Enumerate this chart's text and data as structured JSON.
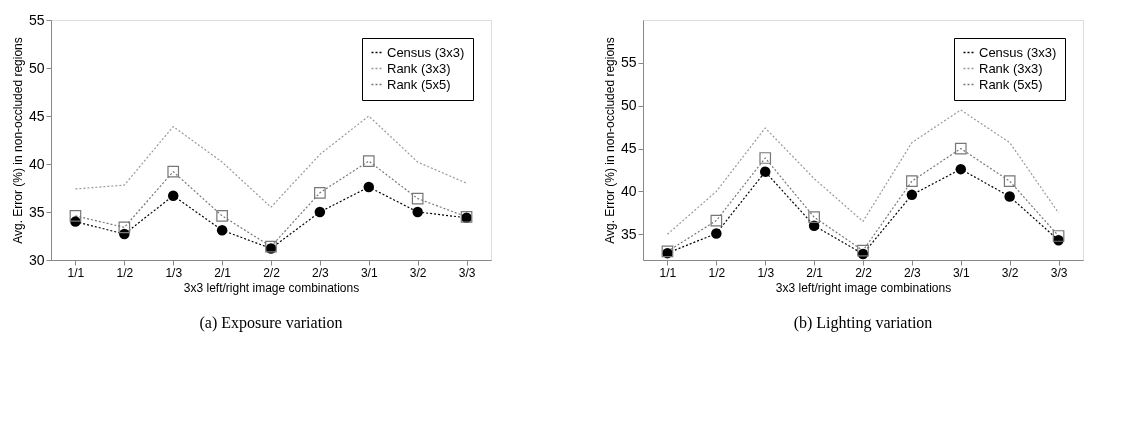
{
  "chart_data": [
    {
      "type": "line",
      "title": "(a) Exposure variation",
      "xlabel": "3x3 left/right image combinations",
      "ylabel": "Avg. Error (%) in non-occluded regions",
      "categories": [
        "1/1",
        "1/2",
        "1/3",
        "2/1",
        "2/2",
        "2/3",
        "3/1",
        "3/2",
        "3/3"
      ],
      "ylim": [
        30,
        55
      ],
      "yticks": [
        30,
        35,
        40,
        45,
        50,
        55
      ],
      "legend": "top right",
      "grid": false,
      "line_style": "dotted",
      "series": [
        {
          "name": "Census (3x3)",
          "color": "#000000",
          "marker": "circle",
          "values": [
            34.0,
            32.7,
            36.7,
            33.1,
            31.2,
            35.0,
            37.6,
            35.0,
            34.4
          ]
        },
        {
          "name": "Rank (3x3)",
          "color": "#999999",
          "marker": "none",
          "values": [
            37.4,
            37.8,
            43.9,
            40.2,
            35.5,
            41.0,
            45.0,
            40.2,
            38.0
          ]
        },
        {
          "name": "Rank (5x5)",
          "color": "#777777",
          "marker": "square",
          "values": [
            34.6,
            33.4,
            39.2,
            34.6,
            31.4,
            37.0,
            40.3,
            36.4,
            34.5
          ]
        }
      ]
    },
    {
      "type": "line",
      "title": "(b) Lighting variation",
      "xlabel": "3x3 left/right image combinations",
      "ylabel": "Avg. Error (%) in non-occluded regions",
      "categories": [
        "1/1",
        "1/2",
        "1/3",
        "2/1",
        "2/2",
        "2/3",
        "3/1",
        "3/2",
        "3/3"
      ],
      "ylim": [
        32,
        60
      ],
      "yticks": [
        35,
        40,
        45,
        50,
        55
      ],
      "legend": "top right",
      "grid": false,
      "line_style": "dotted",
      "series": [
        {
          "name": "Census (3x3)",
          "color": "#000000",
          "marker": "circle",
          "values": [
            32.8,
            35.1,
            42.3,
            36.0,
            32.7,
            39.6,
            42.6,
            39.4,
            34.3
          ]
        },
        {
          "name": "Rank (3x3)",
          "color": "#999999",
          "marker": "none",
          "values": [
            35.0,
            40.0,
            47.4,
            41.5,
            36.5,
            45.7,
            49.5,
            45.7,
            37.5
          ]
        },
        {
          "name": "Rank (5x5)",
          "color": "#777777",
          "marker": "square",
          "values": [
            33.0,
            36.6,
            43.9,
            37.0,
            33.1,
            41.2,
            45.0,
            41.2,
            34.8
          ]
        }
      ]
    }
  ]
}
